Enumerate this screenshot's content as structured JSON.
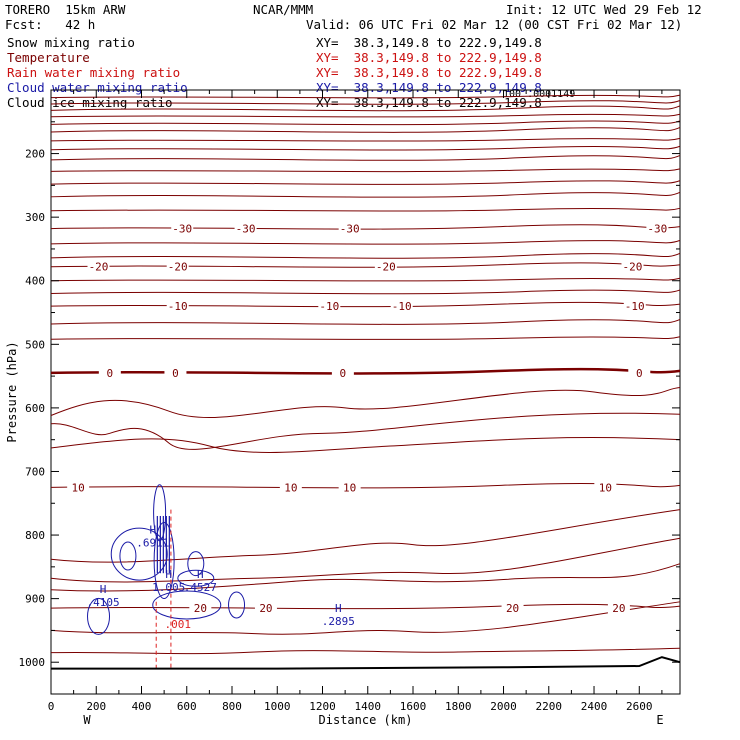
{
  "header": {
    "model": "TORERO  15km ARW",
    "center": "NCAR/MMM",
    "init": "Init: 12 UTC Wed 29 Feb 12",
    "fcst": "Fcst:   42 h",
    "valid": "Valid: 06 UTC Fri 02 Mar 12 (00 CST Fri 02 Mar 12)"
  },
  "legend": [
    {
      "name": "Snow mixing ratio",
      "xy": "XY=  38.3,149.8 to 222.9,149.8",
      "color": "#000000"
    },
    {
      "name": "Temperature",
      "xy": "XY=  38.3,149.8 to 222.9,149.8",
      "color": "#7a0000"
    },
    {
      "name": "Rain water mixing ratio",
      "xy": "XY=  38.3,149.8 to 222.9,149.8",
      "color": "#cc1111"
    },
    {
      "name": "Cloud water mixing ratio",
      "xy": "XY=  38.3,149.8 to 222.9,149.8",
      "color": "#1a1aa6"
    },
    {
      "name": "Cloud ice mixing ratio",
      "xy": "XY=  38.3,149.8 to 222.9,149.8",
      "color": "#000000"
    }
  ],
  "overlap_label": "100 .0001149",
  "chart_data": {
    "type": "cross-section-contour",
    "xlabel": "Distance (km)",
    "ylabel": "Pressure (hPa)",
    "xlim": [
      0,
      2780
    ],
    "ylim": [
      1050,
      100
    ],
    "x_ticks": [
      0,
      200,
      400,
      600,
      800,
      1000,
      1200,
      1400,
      1600,
      1800,
      2000,
      2200,
      2400,
      2600
    ],
    "y_ticks": [
      200,
      300,
      400,
      500,
      600,
      700,
      800,
      900,
      1000
    ],
    "x_end_labels": {
      "left": "W",
      "right": "E"
    },
    "temperature_contours": [
      {
        "level": -30,
        "pressure": 318,
        "labels": [
          {
            "x": 580,
            "text": "-30"
          },
          {
            "x": 860,
            "text": "-30"
          },
          {
            "x": 1320,
            "text": "-30"
          },
          {
            "x": 2680,
            "text": "-30"
          }
        ]
      },
      {
        "level": -20,
        "pressure": 378,
        "labels": [
          {
            "x": 210,
            "text": "-20"
          },
          {
            "x": 560,
            "text": "-20"
          },
          {
            "x": 1480,
            "text": "-20"
          },
          {
            "x": 2570,
            "text": "-20"
          }
        ]
      },
      {
        "level": -10,
        "pressure": 440,
        "labels": [
          {
            "x": 560,
            "text": "-10"
          },
          {
            "x": 1230,
            "text": "-10"
          },
          {
            "x": 1550,
            "text": "-10"
          },
          {
            "x": 2580,
            "text": "-10"
          }
        ]
      },
      {
        "level": 0,
        "pressure": 545,
        "labels": [
          {
            "x": 260,
            "text": "0"
          },
          {
            "x": 550,
            "text": "0"
          },
          {
            "x": 1290,
            "text": "0"
          },
          {
            "x": 2600,
            "text": "0"
          }
        ]
      },
      {
        "level": 10,
        "pressure": 725,
        "labels": [
          {
            "x": 120,
            "text": "10"
          },
          {
            "x": 1060,
            "text": "10"
          },
          {
            "x": 1320,
            "text": "10"
          },
          {
            "x": 2450,
            "text": "10"
          }
        ]
      },
      {
        "level": 20,
        "pressure": 915,
        "labels": [
          {
            "x": 660,
            "text": "20"
          },
          {
            "x": 950,
            "text": "20"
          },
          {
            "x": 2040,
            "text": "20"
          },
          {
            "x": 2510,
            "text": "20"
          }
        ]
      }
    ],
    "cloud_water_extrema": [
      {
        "x": 450,
        "p": 812,
        "label": ".6911"
      },
      {
        "x": 520,
        "p": 882,
        "label": "1.005"
      },
      {
        "x": 660,
        "p": 882,
        "label": ".4527"
      },
      {
        "x": 230,
        "p": 905,
        "label": ".4105"
      },
      {
        "x": 1270,
        "p": 935,
        "label": ".2895"
      }
    ],
    "rain_water_extrema": [
      {
        "x": 560,
        "p": 940,
        "label": ".001"
      }
    ],
    "extremum_marker": "H",
    "terrain": [
      [
        0,
        1010
      ],
      [
        1000,
        1010
      ],
      [
        2000,
        1008
      ],
      [
        2600,
        1006
      ],
      [
        2700,
        992
      ],
      [
        2780,
        1000
      ]
    ]
  }
}
